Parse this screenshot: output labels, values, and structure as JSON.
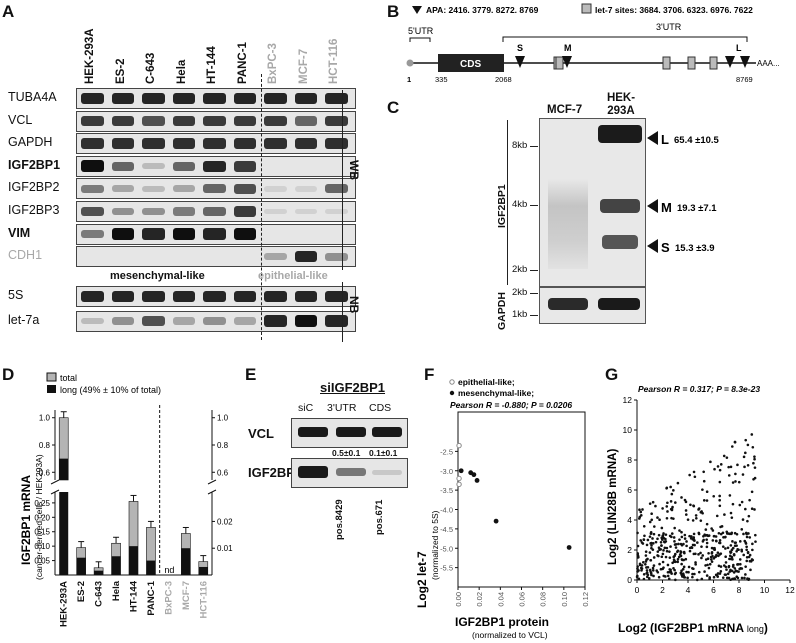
{
  "panels": {
    "A": "A",
    "B": "B",
    "C": "C",
    "D": "D",
    "E": "E",
    "F": "F",
    "G": "G"
  },
  "panelA": {
    "lanes": [
      {
        "name": "HEK-293A",
        "group": "mes"
      },
      {
        "name": "ES-2",
        "group": "mes"
      },
      {
        "name": "C-643",
        "group": "mes"
      },
      {
        "name": "Hela",
        "group": "mes"
      },
      {
        "name": "HT-144",
        "group": "mes"
      },
      {
        "name": "PANC-1",
        "group": "mes"
      },
      {
        "name": "BxPC-3",
        "group": "epi"
      },
      {
        "name": "MCF-7",
        "group": "epi"
      },
      {
        "name": "HCT-116",
        "group": "epi"
      }
    ],
    "wb_rows": [
      "TUBA4A",
      "VCL",
      "GAPDH",
      "IGF2BP1",
      "IGF2BP2",
      "IGF2BP3",
      "VIM",
      "CDH1"
    ],
    "wb_bold": [
      "IGF2BP1",
      "VIM"
    ],
    "nb_rows": [
      "5S",
      "let-7a"
    ],
    "wb_label": "WB",
    "nb_label": "NB",
    "mes_label": "mesenchymal-like",
    "epi_label": "epithelial-like",
    "band_intensity": {
      "TUBA4A": [
        0.9,
        0.9,
        0.9,
        0.9,
        0.9,
        0.9,
        0.9,
        0.9,
        0.9
      ],
      "VCL": [
        0.8,
        0.8,
        0.7,
        0.8,
        0.8,
        0.8,
        0.8,
        0.6,
        0.8
      ],
      "GAPDH": [
        0.85,
        0.85,
        0.85,
        0.85,
        0.85,
        0.85,
        0.85,
        0.85,
        0.85
      ],
      "IGF2BP1": [
        1.0,
        0.6,
        0.2,
        0.6,
        0.9,
        0.8,
        0.0,
        0.0,
        0.0
      ],
      "IGF2BP2": [
        0.5,
        0.3,
        0.2,
        0.3,
        0.6,
        0.7,
        0.1,
        0.1,
        0.6
      ],
      "IGF2BP3": [
        0.7,
        0.4,
        0.4,
        0.5,
        0.6,
        0.8,
        0.1,
        0.1,
        0.1
      ],
      "VIM": [
        0.5,
        1.0,
        0.9,
        1.0,
        0.9,
        1.0,
        0.0,
        0.0,
        0.0
      ],
      "CDH1": [
        0.0,
        0.0,
        0.0,
        0.0,
        0.0,
        0.0,
        0.3,
        0.9,
        0.4
      ],
      "5S": [
        0.9,
        0.9,
        0.9,
        0.9,
        0.9,
        0.9,
        0.9,
        0.9,
        0.9
      ],
      "let-7a": [
        0.2,
        0.4,
        0.7,
        0.3,
        0.4,
        0.3,
        0.9,
        1.0,
        0.9
      ]
    }
  },
  "panelB": {
    "legend_apa": "APA: 2416. 3779. 8272. 8769",
    "legend_let7": "let-7 sites: 3684. 3706. 6323. 6976. 7622",
    "utr5": "5'UTR",
    "utr3": "3'UTR",
    "cds": "CDS",
    "pos_1": "1",
    "pos_335": "335",
    "pos_2068": "2068",
    "pos_8769": "8769",
    "short": "S",
    "medium": "M",
    "long": "L",
    "polyA": "AAA..."
  },
  "panelC": {
    "lane1": "MCF-7",
    "lane2": "HEK-293A",
    "ylabel": "IGF2BP1",
    "gapdh": "GAPDH",
    "kb8": "8kb",
    "kb4": "4kb",
    "kb2": "2kb",
    "kb2b": "2kb",
    "kb1": "1kb",
    "L": "L",
    "L_val": "65.4 ±10.5",
    "M": "M",
    "M_val": "19.3 ±7.1",
    "S": "S",
    "S_val": "15.3 ±3.9"
  },
  "panelD": {
    "ylabel": "IGF2BP1 mRNA",
    "ysub": "(cancer-derived cells / HEK293A)",
    "legend_total": "total",
    "legend_long": "long (49% ± 10% of total)",
    "nd": "nd",
    "ticks_top": [
      "1.0",
      "0.8",
      "0.6"
    ],
    "ticks_bottom": [
      "0.25",
      "0.20",
      "0.15",
      "0.10",
      "0.05"
    ],
    "ticks_right_top": [
      "1.0",
      "0.8",
      "0.6"
    ],
    "ticks_right_bottom": [
      "0.02",
      "0.01"
    ]
  },
  "chart_data": [
    {
      "type": "bar",
      "title": "",
      "ylabel": "IGF2BP1 mRNA",
      "categories": [
        "HEK-293A",
        "ES-2",
        "C-643",
        "Hela",
        "HT-144",
        "PANC-1",
        "BxPC-3",
        "MCF-7",
        "HCT-116"
      ],
      "series": [
        {
          "name": "total",
          "values": [
            1.0,
            0.095,
            0.025,
            0.11,
            0.255,
            0.165,
            null,
            0.0155,
            0.005
          ]
        },
        {
          "name": "long (49% ± 10% of total)",
          "values": [
            0.7,
            0.06,
            0.015,
            0.065,
            0.1,
            0.05,
            null,
            0.01,
            0.003
          ]
        }
      ],
      "notes": "BxPC-3 nd"
    },
    {
      "type": "scatter",
      "title": "",
      "xlabel": "IGF2BP1 protein",
      "xsub": "(normalized to VCL)",
      "ylabel": "Log2 let-7",
      "ysub": "(normalized to 5S)",
      "xlim": [
        0,
        0.12
      ],
      "ylim": [
        -6,
        -2
      ],
      "annotation": "Pearson R = -0.880; P = 0.0206",
      "series": [
        {
          "name": "epithelial-like;",
          "points": [
            [
              0.001,
              -2.35
            ],
            [
              0.001,
              -3.2
            ],
            [
              0.001,
              -3.35
            ]
          ]
        },
        {
          "name": "mesenchymal-like;",
          "points": [
            [
              0.003,
              -3.0
            ],
            [
              0.012,
              -3.05
            ],
            [
              0.015,
              -3.1
            ],
            [
              0.018,
              -3.25
            ],
            [
              0.036,
              -4.3
            ],
            [
              0.105,
              -4.98
            ]
          ]
        }
      ]
    },
    {
      "type": "scatter",
      "title": "",
      "xlabel": "Log2 (IGF2BP1 mRNA long)",
      "ylabel": "Log2 (LIN28B mRNA)",
      "xlim": [
        0,
        12
      ],
      "ylim": [
        0,
        12
      ],
      "annotation": "Pearson R = 0.317; P = 8.3e-23"
    }
  ],
  "panelE": {
    "title": "siIGF2BP1",
    "cols": [
      "siC",
      "3'UTR",
      "CDS"
    ],
    "rows": [
      "VCL",
      "IGF2BP1"
    ],
    "vals": [
      "0.5±0.1",
      "0.1±0.1"
    ],
    "pos1": "pos.8429",
    "pos2": "pos.671"
  },
  "panelF": {
    "legend_epi": "epithelial-like;",
    "legend_mes": "mesenchymal-like;",
    "pearson": "Pearson R = -0.880; P = 0.0206",
    "xlabel": "IGF2BP1 protein",
    "xsub": "(normalized to VCL)",
    "ylabel": "Log2 let-7",
    "ysub": "(normalized to 5S)",
    "xticks": [
      "0.00",
      "0.02",
      "0.04",
      "0.06",
      "0.08",
      "0.10",
      "0.12"
    ],
    "yticks": [
      "-2.5",
      "-3.0",
      "-3.5",
      "-4.0",
      "-4.5",
      "-5.0",
      "-5.5"
    ]
  },
  "panelG": {
    "pearson": "Pearson R = 0.317; P = 8.3e-23",
    "xlabel": "Log2 (IGF2BP1 mRNA",
    "xlabel_sub": "long",
    "xlabel_end": ")",
    "ylabel": "Log2 (LIN28B mRNA)",
    "xticks": [
      "0",
      "2",
      "4",
      "6",
      "8",
      "10",
      "12"
    ],
    "yticks": [
      "0",
      "2",
      "4",
      "6",
      "8",
      "10",
      "12"
    ]
  },
  "colors": {
    "gray": "#a8a8a8",
    "bar_total": "#b4b4b4",
    "bar_long": "#111111",
    "blot_bg": "#e6e6e6"
  }
}
